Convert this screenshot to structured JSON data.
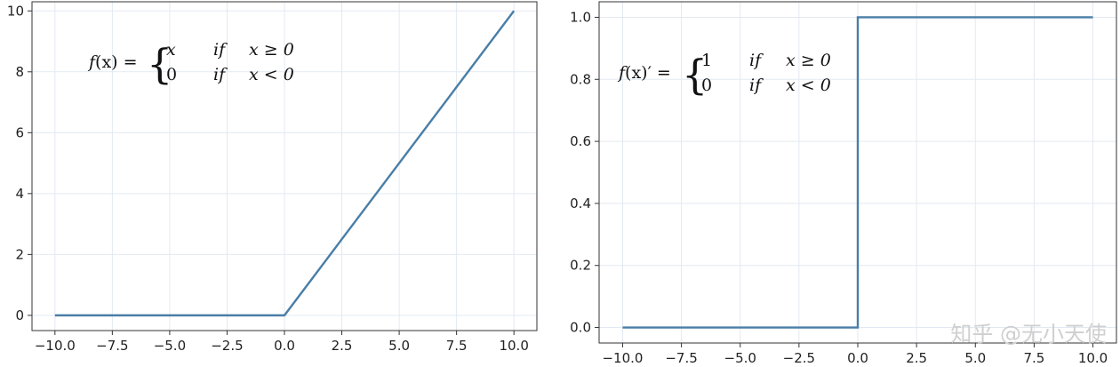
{
  "chart_data": [
    {
      "type": "line",
      "title": "",
      "xlabel": "",
      "ylabel": "",
      "xlim": [
        -11,
        11
      ],
      "ylim": [
        -0.5,
        10.3
      ],
      "xticks": [
        -10,
        -7.5,
        -5,
        -2.5,
        0,
        2.5,
        5,
        7.5,
        10
      ],
      "xtick_labels": [
        "−10.0",
        "−7.5",
        "−5.0",
        "−2.5",
        "0.0",
        "2.5",
        "5.0",
        "7.5",
        "10.0"
      ],
      "yticks": [
        0,
        2,
        4,
        6,
        8,
        10
      ],
      "ytick_labels": [
        "0",
        "2",
        "4",
        "6",
        "8",
        "10"
      ],
      "grid": true,
      "line_color": "#4a7ea6",
      "series": [
        {
          "x": [
            -10,
            0,
            10
          ],
          "y": [
            0,
            0,
            10
          ]
        }
      ],
      "annotation": {
        "lhs_func": "f",
        "lhs_arg": "(x)",
        "lhs_prime": "",
        "eq": "=",
        "row1_value": "x",
        "row1_if": "if",
        "row1_cond": "x ≥ 0",
        "row2_value": "0",
        "row2_if": "if",
        "row2_cond": "x < 0"
      }
    },
    {
      "type": "line",
      "title": "",
      "xlabel": "",
      "ylabel": "",
      "xlim": [
        -11,
        11
      ],
      "ylim": [
        -0.05,
        1.05
      ],
      "xticks": [
        -10,
        -7.5,
        -5,
        -2.5,
        0,
        2.5,
        5,
        7.5,
        10
      ],
      "xtick_labels": [
        "−10.0",
        "−7.5",
        "−5.0",
        "−2.5",
        "0.0",
        "2.5",
        "5.0",
        "7.5",
        "10.0"
      ],
      "yticks": [
        0,
        0.2,
        0.4,
        0.6,
        0.8,
        1.0
      ],
      "ytick_labels": [
        "0.0",
        "0.2",
        "0.4",
        "0.6",
        "0.8",
        "1.0"
      ],
      "grid": true,
      "line_color": "#4a7ea6",
      "series": [
        {
          "x": [
            -10,
            0,
            0,
            10
          ],
          "y": [
            0,
            0,
            1,
            1
          ]
        }
      ],
      "annotation": {
        "lhs_func": "f",
        "lhs_arg": "(x)",
        "lhs_prime": "′",
        "eq": "=",
        "row1_value": "1",
        "row1_if": "if",
        "row1_cond": "x ≥ 0",
        "row2_value": "0",
        "row2_if": "if",
        "row2_cond": "x < 0"
      }
    }
  ],
  "watermark": "知乎 @无小天使"
}
